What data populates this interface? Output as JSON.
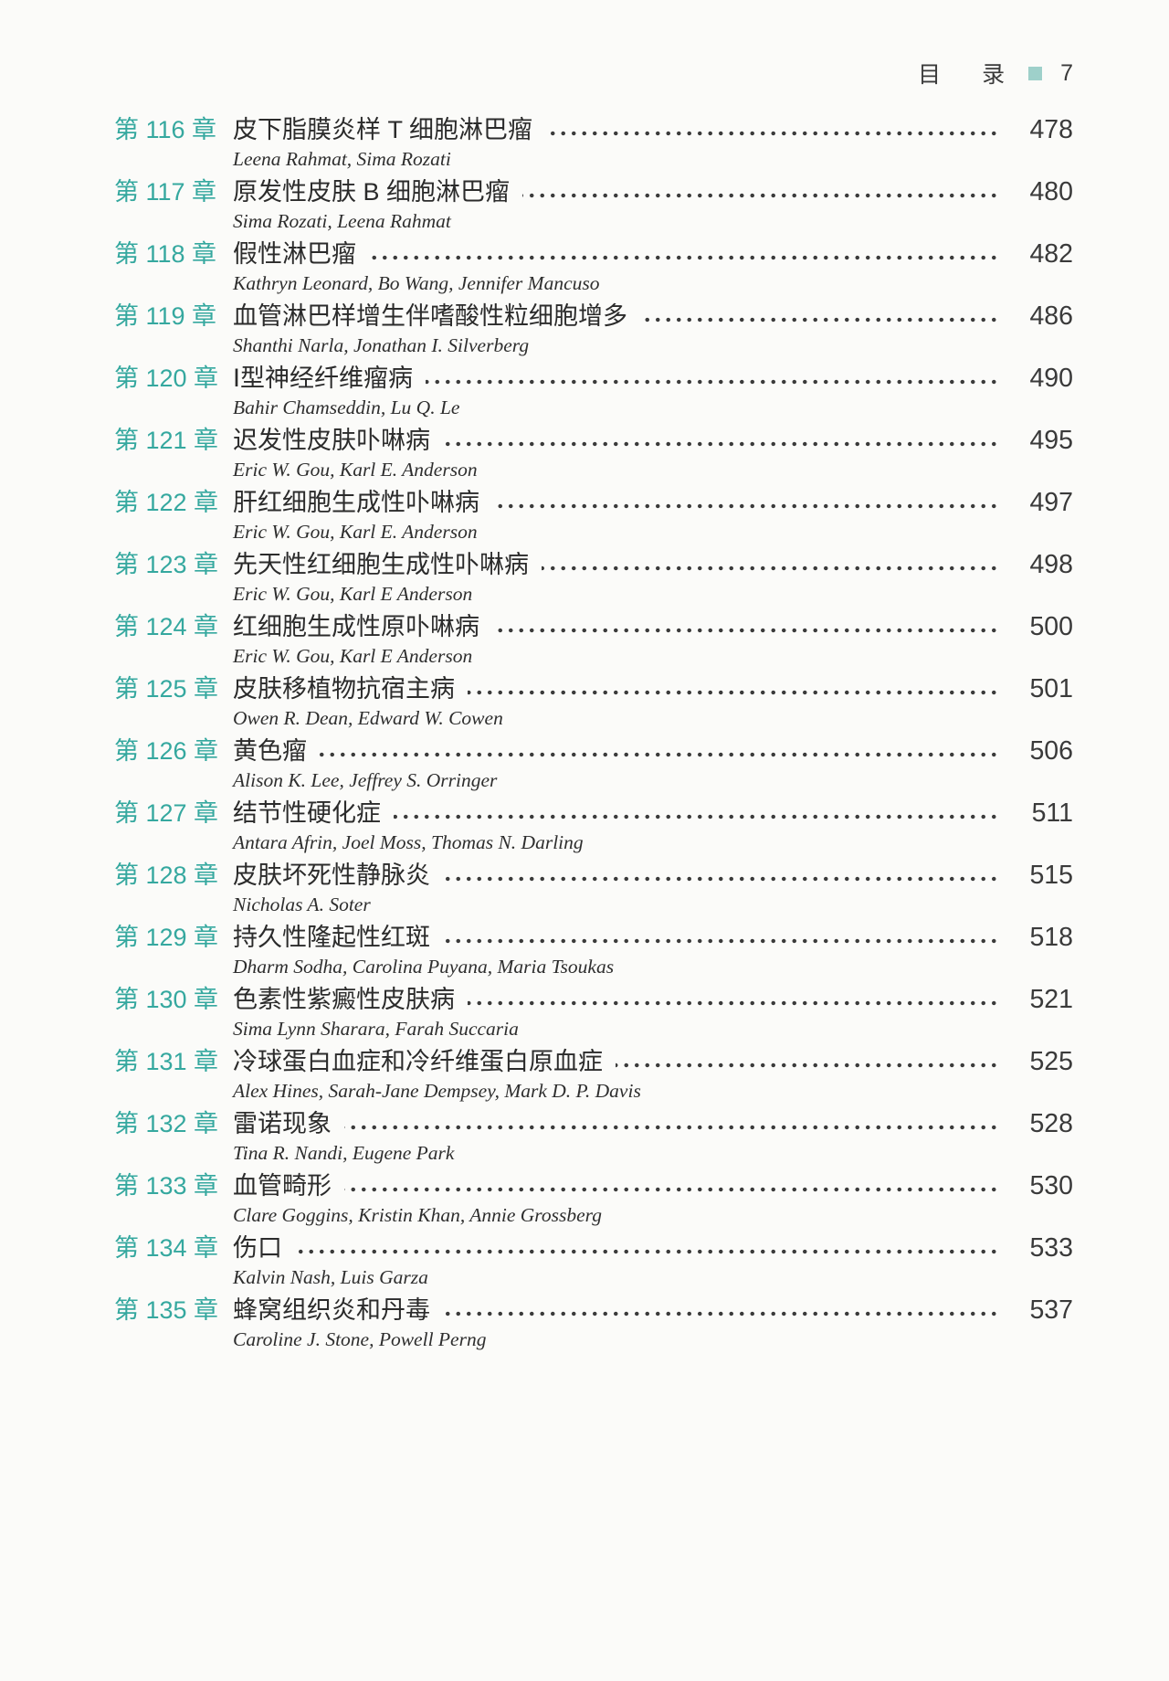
{
  "header": {
    "title": "目 录",
    "page_number": "7",
    "square_color": "#9ed0ca"
  },
  "colors": {
    "accent_teal": "#35a89f",
    "title_text": "#2b2b2b",
    "page_number_text": "#3a3a3a",
    "background": "#fbfbf9"
  },
  "entries": [
    {
      "chapter": "第 116 章",
      "title": "皮下脂膜炎样 T 细胞淋巴瘤",
      "authors": "Leena Rahmat, Sima Rozati",
      "page": "478"
    },
    {
      "chapter": "第 117 章",
      "title": "原发性皮肤 B 细胞淋巴瘤",
      "authors": "Sima Rozati, Leena Rahmat",
      "page": "480"
    },
    {
      "chapter": "第 118 章",
      "title": "假性淋巴瘤",
      "authors": "Kathryn Leonard, Bo Wang, Jennifer Mancuso",
      "page": "482"
    },
    {
      "chapter": "第 119 章",
      "title": "血管淋巴样增生伴嗜酸性粒细胞增多",
      "authors": "Shanthi Narla, Jonathan I. Silverberg",
      "page": "486"
    },
    {
      "chapter": "第 120 章",
      "title": "Ⅰ型神经纤维瘤病",
      "authors": "Bahir Chamseddin, Lu Q. Le",
      "page": "490"
    },
    {
      "chapter": "第 121 章",
      "title": "迟发性皮肤卟啉病",
      "authors": "Eric W. Gou, Karl E. Anderson",
      "page": "495"
    },
    {
      "chapter": "第 122 章",
      "title": "肝红细胞生成性卟啉病",
      "authors": "Eric W. Gou, Karl E. Anderson",
      "page": "497"
    },
    {
      "chapter": "第 123 章",
      "title": "先天性红细胞生成性卟啉病",
      "authors": "Eric W. Gou, Karl E Anderson",
      "page": "498"
    },
    {
      "chapter": "第 124 章",
      "title": "红细胞生成性原卟啉病",
      "authors": "Eric W. Gou, Karl E Anderson",
      "page": "500"
    },
    {
      "chapter": "第 125 章",
      "title": "皮肤移植物抗宿主病",
      "authors": "Owen R. Dean, Edward W. Cowen",
      "page": "501"
    },
    {
      "chapter": "第 126 章",
      "title": "黄色瘤",
      "authors": "Alison K. Lee, Jeffrey S. Orringer",
      "page": "506"
    },
    {
      "chapter": "第 127 章",
      "title": "结节性硬化症",
      "authors": "Antara Afrin, Joel Moss, Thomas N. Darling",
      "page": "511"
    },
    {
      "chapter": "第 128 章",
      "title": "皮肤坏死性静脉炎",
      "authors": "Nicholas A. Soter",
      "page": "515"
    },
    {
      "chapter": "第 129 章",
      "title": "持久性隆起性红斑",
      "authors": "Dharm Sodha, Carolina Puyana, Maria Tsoukas",
      "page": "518"
    },
    {
      "chapter": "第 130 章",
      "title": "色素性紫癜性皮肤病",
      "authors": "Sima Lynn Sharara, Farah Succaria",
      "page": "521"
    },
    {
      "chapter": "第 131 章",
      "title": "冷球蛋白血症和冷纤维蛋白原血症",
      "authors": "Alex Hines, Sarah-Jane Dempsey, Mark D. P. Davis",
      "page": "525"
    },
    {
      "chapter": "第 132 章",
      "title": "雷诺现象",
      "authors": "Tina R. Nandi, Eugene Park",
      "page": "528"
    },
    {
      "chapter": "第 133 章",
      "title": "血管畸形",
      "authors": "Clare Goggins, Kristin Khan, Annie Grossberg",
      "page": "530"
    },
    {
      "chapter": "第 134 章",
      "title": "伤口",
      "authors": "Kalvin Nash, Luis Garza",
      "page": "533"
    },
    {
      "chapter": "第 135 章",
      "title": "蜂窝组织炎和丹毒",
      "authors": "Caroline J. Stone, Powell Perng",
      "page": "537"
    }
  ]
}
